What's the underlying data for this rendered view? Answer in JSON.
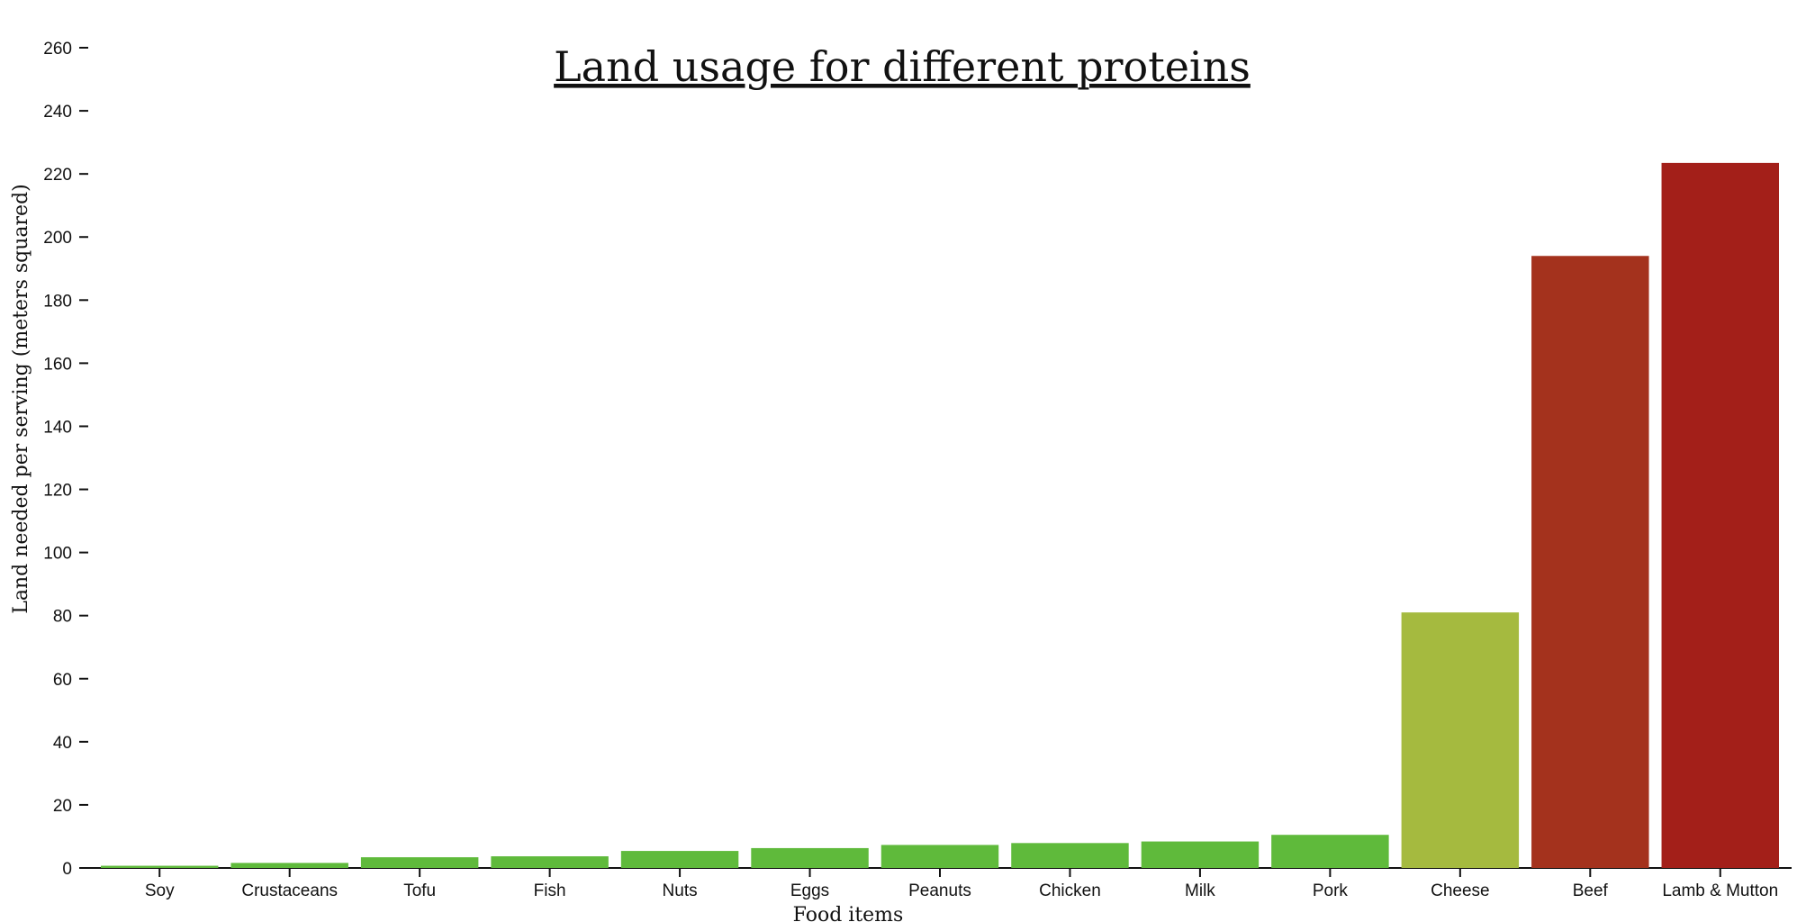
{
  "chart_data": {
    "type": "bar",
    "title": "Land usage for different proteins",
    "xlabel": "Food items",
    "ylabel": "Land needed per serving (meters squared)",
    "ylim": [
      0,
      260
    ],
    "yticks": [
      0,
      20,
      40,
      60,
      80,
      100,
      120,
      140,
      160,
      180,
      200,
      220,
      240,
      260
    ],
    "grid": false,
    "legend": "none",
    "categories": [
      "Soy",
      "Crustaceans",
      "Tofu",
      "Fish",
      "Nuts",
      "Eggs",
      "Peanuts",
      "Chicken",
      "Milk",
      "Pork",
      "Cheese",
      "Beef",
      "Lamb & Mutton"
    ],
    "values": [
      0.7,
      1.6,
      3.4,
      3.7,
      5.4,
      6.3,
      7.3,
      7.9,
      8.4,
      10.5,
      81.0,
      194.0,
      223.5
    ],
    "colors": [
      "#5fba3b",
      "#5fba3b",
      "#5fba3b",
      "#5fba3b",
      "#5fba3b",
      "#5fba3b",
      "#5fba3b",
      "#5fba3b",
      "#5fba3b",
      "#5fba3b",
      "#a5ba3f",
      "#a4321d",
      "#a31f19"
    ]
  }
}
